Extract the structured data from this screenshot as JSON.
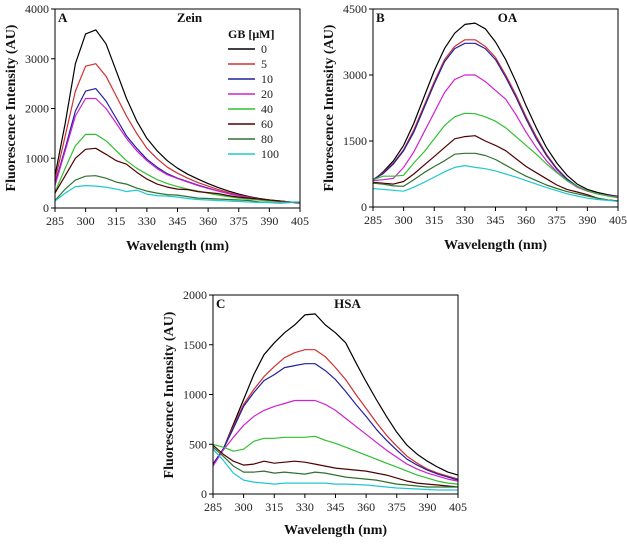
{
  "chart_data": [
    {
      "type": "line",
      "panel": "A",
      "title": "Zein",
      "xlabel": "Wavelength (nm)",
      "ylabel": "Fluorescence Intensity (AU)",
      "xlim": [
        285,
        405
      ],
      "ylim": [
        0,
        4000
      ],
      "xticks": [
        285,
        300,
        315,
        330,
        345,
        360,
        375,
        390,
        405
      ],
      "yticks": [
        0,
        1000,
        2000,
        3000,
        4000
      ],
      "grid": false,
      "legend": {
        "title": "GB [μM]",
        "placement": "top-right"
      },
      "x": [
        285,
        290,
        295,
        300,
        305,
        310,
        315,
        320,
        325,
        330,
        335,
        340,
        345,
        350,
        355,
        360,
        365,
        370,
        375,
        380,
        385,
        390,
        395,
        400,
        405
      ],
      "series": [
        {
          "name": "0",
          "color": "#000000",
          "values": [
            650,
            1700,
            2900,
            3500,
            3580,
            3300,
            2750,
            2200,
            1750,
            1400,
            1150,
            950,
            800,
            680,
            580,
            490,
            410,
            340,
            280,
            230,
            190,
            160,
            140,
            120,
            100
          ]
        },
        {
          "name": "5",
          "color": "#d03030",
          "values": [
            550,
            1450,
            2350,
            2850,
            2900,
            2650,
            2250,
            1850,
            1500,
            1200,
            990,
            820,
            700,
            600,
            510,
            440,
            370,
            310,
            260,
            220,
            180,
            155,
            135,
            115,
            100
          ]
        },
        {
          "name": "10",
          "color": "#2020a0",
          "values": [
            480,
            1200,
            1950,
            2350,
            2400,
            2150,
            1800,
            1450,
            1200,
            980,
            820,
            690,
            600,
            530,
            460,
            400,
            340,
            290,
            250,
            210,
            180,
            155,
            135,
            120,
            100
          ]
        },
        {
          "name": "20",
          "color": "#d020d0",
          "values": [
            450,
            1150,
            1850,
            2200,
            2200,
            2000,
            1700,
            1400,
            1150,
            950,
            790,
            670,
            590,
            520,
            450,
            390,
            340,
            290,
            250,
            210,
            180,
            160,
            140,
            120,
            110
          ]
        },
        {
          "name": "40",
          "color": "#30c030",
          "values": [
            320,
            800,
            1250,
            1480,
            1480,
            1350,
            1150,
            950,
            800,
            680,
            570,
            490,
            430,
            380,
            340,
            300,
            260,
            230,
            200,
            180,
            160,
            140,
            130,
            120,
            110
          ]
        },
        {
          "name": "60",
          "color": "#500000",
          "values": [
            300,
            650,
            1000,
            1180,
            1200,
            1080,
            950,
            880,
            720,
            580,
            480,
            420,
            380,
            370,
            330,
            310,
            290,
            250,
            220,
            200,
            180,
            160,
            140,
            120,
            100
          ]
        },
        {
          "name": "80",
          "color": "#307030",
          "values": [
            150,
            380,
            560,
            640,
            650,
            600,
            520,
            480,
            400,
            340,
            300,
            270,
            260,
            230,
            200,
            190,
            180,
            170,
            160,
            150,
            120,
            110,
            100,
            110,
            120
          ]
        },
        {
          "name": "100",
          "color": "#20c8d0",
          "values": [
            140,
            300,
            430,
            450,
            440,
            420,
            380,
            330,
            360,
            280,
            250,
            240,
            220,
            190,
            170,
            160,
            150,
            140,
            130,
            120,
            110,
            110,
            110,
            120,
            120
          ]
        }
      ]
    },
    {
      "type": "line",
      "panel": "B",
      "title": "OA",
      "xlabel": "Wavelength (nm)",
      "ylabel": "Fluorescence Intensity (AU)",
      "xlim": [
        285,
        405
      ],
      "ylim": [
        0,
        4500
      ],
      "xticks": [
        285,
        300,
        315,
        330,
        345,
        360,
        375,
        390,
        405
      ],
      "yticks": [
        0,
        1500,
        3000,
        4500
      ],
      "grid": false,
      "x": [
        285,
        290,
        295,
        300,
        305,
        310,
        315,
        320,
        325,
        330,
        335,
        340,
        345,
        350,
        355,
        360,
        365,
        370,
        375,
        380,
        385,
        390,
        395,
        400,
        405
      ],
      "series": [
        {
          "name": "0",
          "color": "#000000",
          "values": [
            600,
            800,
            1050,
            1400,
            1900,
            2500,
            3100,
            3600,
            3950,
            4150,
            4180,
            4050,
            3750,
            3350,
            2850,
            2300,
            1800,
            1350,
            1000,
            720,
            520,
            400,
            330,
            280,
            240
          ]
        },
        {
          "name": "5",
          "color": "#d03030",
          "values": [
            620,
            780,
            1000,
            1300,
            1750,
            2300,
            2850,
            3350,
            3650,
            3800,
            3800,
            3650,
            3400,
            3000,
            2550,
            2050,
            1600,
            1200,
            880,
            640,
            470,
            370,
            300,
            260,
            230
          ]
        },
        {
          "name": "10",
          "color": "#2020a0",
          "values": [
            620,
            760,
            980,
            1280,
            1700,
            2250,
            2800,
            3300,
            3600,
            3720,
            3720,
            3600,
            3350,
            2950,
            2500,
            2000,
            1550,
            1170,
            860,
            630,
            470,
            370,
            300,
            260,
            230
          ]
        },
        {
          "name": "20",
          "color": "#d020d0",
          "values": [
            600,
            620,
            650,
            900,
            1250,
            1700,
            2150,
            2600,
            2900,
            3000,
            3000,
            2850,
            2650,
            2450,
            2100,
            1700,
            1350,
            1050,
            800,
            600,
            450,
            360,
            300,
            260,
            230
          ]
        },
        {
          "name": "40",
          "color": "#30c030",
          "values": [
            620,
            700,
            700,
            720,
            1000,
            1250,
            1550,
            1850,
            2050,
            2130,
            2120,
            2050,
            1950,
            1800,
            1600,
            1400,
            1200,
            980,
            780,
            600,
            470,
            370,
            300,
            250,
            210
          ]
        },
        {
          "name": "60",
          "color": "#500000",
          "values": [
            560,
            540,
            520,
            580,
            750,
            950,
            1150,
            1350,
            1550,
            1600,
            1620,
            1500,
            1400,
            1280,
            1100,
            920,
            780,
            640,
            500,
            400,
            340,
            280,
            200,
            160,
            140
          ]
        },
        {
          "name": "80",
          "color": "#307030",
          "values": [
            540,
            520,
            480,
            470,
            620,
            780,
            920,
            1050,
            1200,
            1220,
            1220,
            1170,
            1080,
            950,
            820,
            700,
            600,
            500,
            420,
            350,
            300,
            250,
            200,
            160,
            130
          ]
        },
        {
          "name": "100",
          "color": "#20c8d0",
          "values": [
            420,
            400,
            380,
            360,
            450,
            560,
            680,
            800,
            900,
            940,
            900,
            870,
            820,
            750,
            680,
            600,
            520,
            440,
            370,
            300,
            250,
            200,
            170,
            150,
            130
          ]
        }
      ]
    },
    {
      "type": "line",
      "panel": "C",
      "title": "HSA",
      "xlabel": "Wavelength (nm)",
      "ylabel": "Fluorescence Intensity (AU)",
      "xlim": [
        285,
        405
      ],
      "ylim": [
        0,
        2000
      ],
      "xticks": [
        285,
        300,
        315,
        330,
        345,
        360,
        375,
        390,
        405
      ],
      "yticks": [
        0,
        500,
        1000,
        1500,
        2000
      ],
      "grid": false,
      "x": [
        285,
        290,
        295,
        300,
        305,
        310,
        315,
        320,
        325,
        330,
        335,
        340,
        345,
        350,
        355,
        360,
        365,
        370,
        375,
        380,
        385,
        390,
        395,
        400,
        405
      ],
      "series": [
        {
          "name": "0",
          "color": "#000000",
          "values": [
            300,
            450,
            700,
            950,
            1200,
            1400,
            1520,
            1620,
            1700,
            1800,
            1810,
            1700,
            1620,
            1520,
            1320,
            1130,
            950,
            780,
            620,
            490,
            400,
            330,
            270,
            220,
            190
          ]
        },
        {
          "name": "5",
          "color": "#d03030",
          "values": [
            300,
            450,
            680,
            900,
            1050,
            1180,
            1280,
            1370,
            1420,
            1450,
            1450,
            1380,
            1270,
            1150,
            1000,
            860,
            720,
            590,
            480,
            380,
            310,
            250,
            210,
            180,
            150
          ]
        },
        {
          "name": "10",
          "color": "#2020a0",
          "values": [
            300,
            450,
            660,
            880,
            1020,
            1140,
            1200,
            1270,
            1290,
            1310,
            1310,
            1240,
            1150,
            1030,
            900,
            780,
            650,
            540,
            440,
            350,
            290,
            240,
            200,
            170,
            140
          ]
        },
        {
          "name": "20",
          "color": "#d020d0",
          "values": [
            280,
            440,
            570,
            690,
            780,
            840,
            880,
            910,
            940,
            940,
            940,
            900,
            840,
            760,
            680,
            600,
            520,
            440,
            370,
            300,
            250,
            210,
            180,
            150,
            130
          ]
        },
        {
          "name": "40",
          "color": "#30c030",
          "values": [
            500,
            470,
            430,
            450,
            530,
            560,
            560,
            570,
            570,
            570,
            580,
            540,
            510,
            470,
            430,
            390,
            350,
            310,
            270,
            230,
            190,
            160,
            130,
            110,
            100
          ]
        },
        {
          "name": "60",
          "color": "#500000",
          "values": [
            490,
            400,
            330,
            290,
            300,
            330,
            310,
            320,
            330,
            320,
            300,
            280,
            260,
            250,
            240,
            230,
            210,
            190,
            160,
            130,
            110,
            100,
            90,
            80,
            70
          ]
        },
        {
          "name": "80",
          "color": "#307030",
          "values": [
            470,
            380,
            280,
            220,
            220,
            230,
            210,
            220,
            210,
            200,
            220,
            210,
            190,
            170,
            160,
            150,
            140,
            120,
            100,
            90,
            80,
            70,
            70,
            70,
            70
          ]
        },
        {
          "name": "100",
          "color": "#20c8d0",
          "values": [
            450,
            340,
            210,
            140,
            120,
            110,
            100,
            110,
            110,
            110,
            110,
            110,
            100,
            100,
            95,
            90,
            80,
            70,
            60,
            55,
            50,
            45,
            40,
            40,
            40
          ]
        }
      ]
    }
  ]
}
